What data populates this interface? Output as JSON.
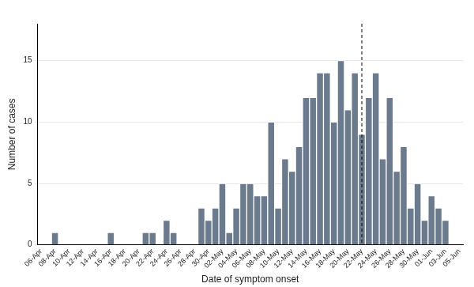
{
  "chart_data": {
    "type": "bar",
    "x_label": "Date of symptom onset",
    "y_label": "Number of cases",
    "categories": [
      "06-Apr",
      null,
      "08-Apr",
      null,
      "10-Apr",
      null,
      "12-Apr",
      null,
      "14-Apr",
      null,
      "16-Apr",
      null,
      "18-Apr",
      null,
      "20-Apr",
      null,
      "22-Apr",
      null,
      "24-Apr",
      null,
      "26-Apr",
      null,
      "28-Apr",
      null,
      "30-Apr",
      null,
      "02-May",
      null,
      "04-May",
      null,
      "06-May",
      null,
      "08-May",
      null,
      "10-May",
      null,
      "12-May",
      null,
      "14-May",
      null,
      "16-May",
      null,
      "18-May",
      null,
      "20-May",
      null,
      "22-May",
      null,
      "24-May",
      null,
      "26-May",
      null,
      "28-May",
      null,
      "30-May",
      null,
      "01-Jun",
      null,
      "03-Jun",
      null,
      "05-Jun"
    ],
    "values": [
      0,
      0,
      1,
      0,
      0,
      0,
      0,
      0,
      0,
      0,
      1,
      0,
      0,
      0,
      0,
      1,
      1,
      0,
      2,
      1,
      0,
      0,
      0,
      3,
      2,
      3,
      5,
      1,
      3,
      5,
      5,
      4,
      4,
      10,
      3,
      7,
      6,
      8,
      12,
      12,
      14,
      14,
      10,
      15,
      11,
      14,
      9,
      12,
      14,
      7,
      12,
      6,
      8,
      3,
      5,
      2,
      4,
      3,
      2,
      0,
      0
    ],
    "color": "#6b7a8c",
    "ylim": [
      0,
      18
    ],
    "yticks": [
      0,
      5,
      10,
      15
    ],
    "grid": "y",
    "vertical_line": {
      "x": "22-May",
      "line_style": "dashed"
    }
  }
}
